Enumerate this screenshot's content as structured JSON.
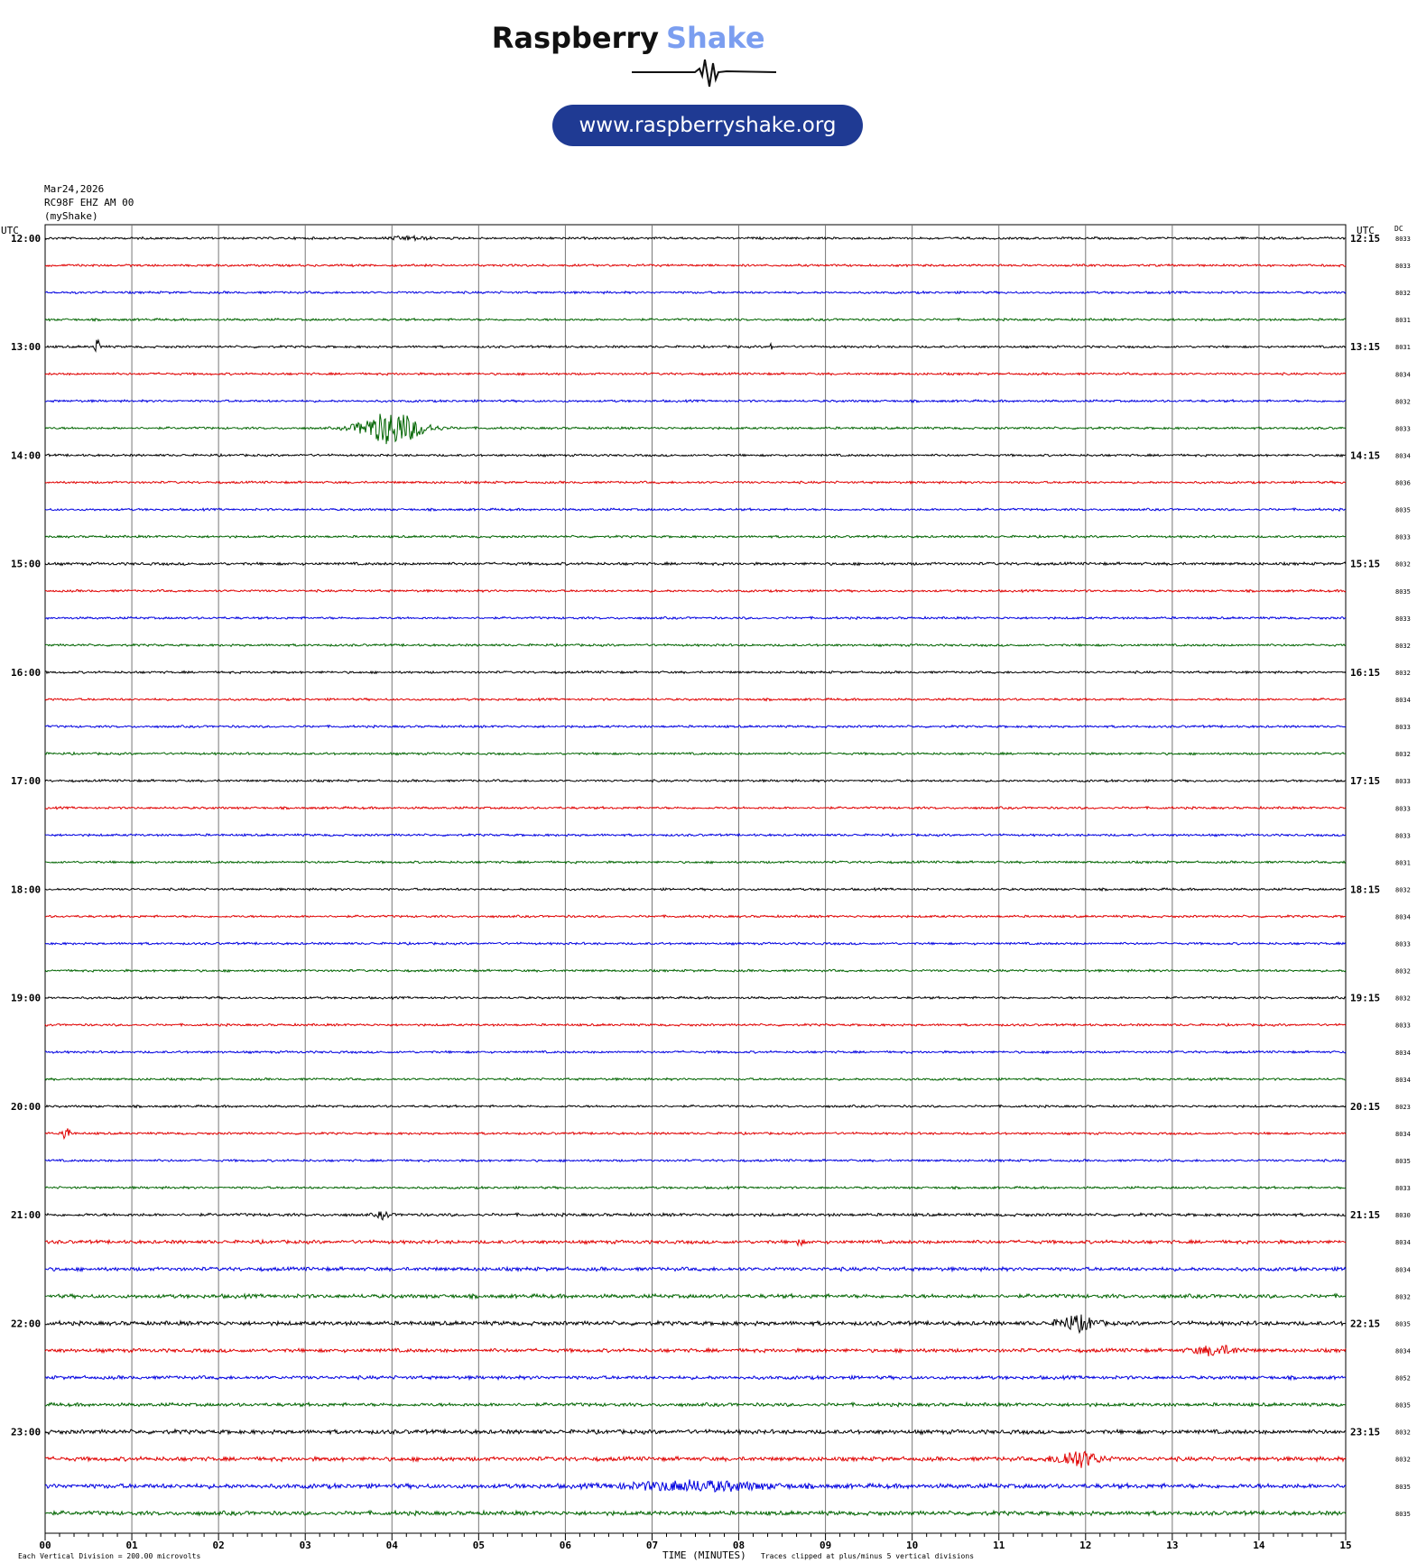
{
  "header": {
    "brand_word1": "Raspberry",
    "brand_word2": "Shake",
    "url": "www.raspberryshake.org",
    "colors": {
      "brand_dark": "#111111",
      "brand_accent": "#7b9ef0",
      "pill_bg": "#1f3a93",
      "pill_text": "#ffffff"
    }
  },
  "plot_info": {
    "date": "Mar24,2026",
    "station": "RC98F EHZ AM 00",
    "user": "(myShake)",
    "left_utc_label": "UTC",
    "right_utc_label": "UTC",
    "dc_label": "DC",
    "x_axis_label": "TIME (MINUTES)",
    "footer_left": "Each Vertical Division =  200.00 microvolts",
    "footer_clip": "Traces clipped at plus/minus 5 vertical divisions"
  },
  "chart_data": {
    "type": "line",
    "xlabel": "TIME (MINUTES)",
    "x_ticks": [
      "00",
      "01",
      "02",
      "03",
      "04",
      "05",
      "06",
      "07",
      "08",
      "09",
      "10",
      "11",
      "12",
      "13",
      "14",
      "15"
    ],
    "xlim": [
      0,
      15
    ],
    "grid": true,
    "trace_colors": [
      "#000000",
      "#e00000",
      "#0000e0",
      "#006400"
    ],
    "row_labels_left": [
      "12:00",
      "13:00",
      "14:00",
      "15:00",
      "16:00",
      "17:00",
      "18:00",
      "19:00",
      "20:00",
      "21:00",
      "22:00",
      "23:00"
    ],
    "row_labels_right": [
      "12:15",
      "13:15",
      "14:15",
      "15:15",
      "16:15",
      "17:15",
      "18:15",
      "19:15",
      "20:15",
      "21:15",
      "22:15",
      "23:15"
    ],
    "dc_values": [
      "8033",
      "8033",
      "8032",
      "8031",
      "8031",
      "8034",
      "8032",
      "8033",
      "8034",
      "8036",
      "8035",
      "8033",
      "8032",
      "8035",
      "8033",
      "8032",
      "8032",
      "8034",
      "8033",
      "8032",
      "8033",
      "8033",
      "8033",
      "8031",
      "8032",
      "8034",
      "8033",
      "8032",
      "8032",
      "8033",
      "8034",
      "8034",
      "8023",
      "8034",
      "8035",
      "8033",
      "8030",
      "8034",
      "8034",
      "8032",
      "8035",
      "8034",
      "8052",
      "8035",
      "8032",
      "8032",
      "8035",
      "8035"
    ],
    "noise_levels": [
      1,
      1,
      1,
      1,
      1,
      1,
      1,
      1,
      1,
      1,
      1,
      1,
      1.2,
      1,
      1,
      1,
      1,
      1,
      1,
      1,
      1,
      1,
      1,
      1,
      1,
      1,
      1,
      1,
      1,
      1,
      1,
      1,
      1,
      1,
      1,
      1,
      1.3,
      1.5,
      1.6,
      1.7,
      1.8,
      1.6,
      1.5,
      1.5,
      1.8,
      1.8,
      2,
      1.8
    ],
    "events": [
      {
        "trace": 0,
        "minute": 4.2,
        "amplitude": 2,
        "duration": 0.6
      },
      {
        "trace": 4,
        "minute": 0.6,
        "amplitude": 8,
        "duration": 0.1
      },
      {
        "trace": 4,
        "minute": 8.38,
        "amplitude": 5,
        "duration": 0.05
      },
      {
        "trace": 7,
        "minute": 4.0,
        "amplitude": 18,
        "duration": 1.0
      },
      {
        "trace": 33,
        "minute": 0.25,
        "amplitude": 12,
        "duration": 0.1
      },
      {
        "trace": 36,
        "minute": 3.9,
        "amplitude": 4,
        "duration": 0.2
      },
      {
        "trace": 37,
        "minute": 8.7,
        "amplitude": 4,
        "duration": 0.1
      },
      {
        "trace": 40,
        "minute": 11.9,
        "amplitude": 8,
        "duration": 0.6
      },
      {
        "trace": 41,
        "minute": 13.5,
        "amplitude": 5,
        "duration": 0.7
      },
      {
        "trace": 45,
        "minute": 11.9,
        "amplitude": 9,
        "duration": 0.7
      },
      {
        "trace": 46,
        "minute": 7.5,
        "amplitude": 5,
        "duration": 2.2
      }
    ]
  }
}
